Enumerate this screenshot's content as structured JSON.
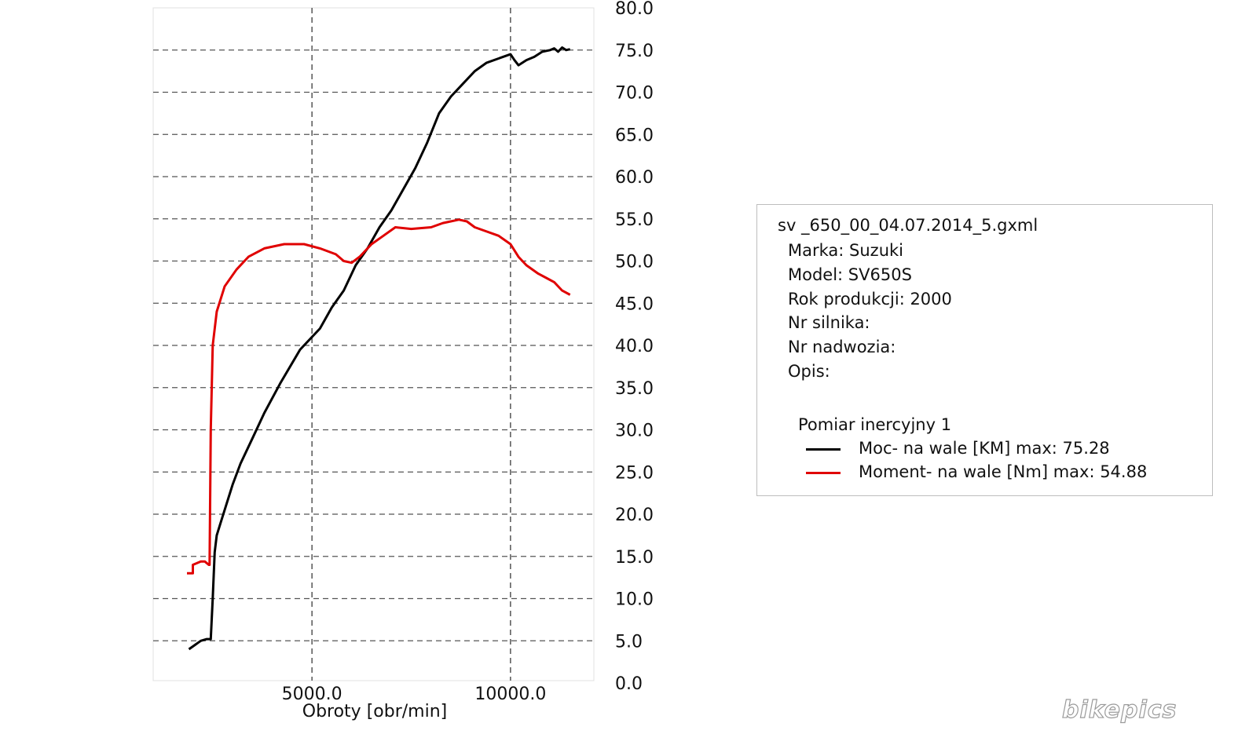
{
  "chart_data": {
    "type": "line",
    "xlabel": "Obroty [obr/min]",
    "ylabel": "",
    "xlim": [
      1000,
      12100
    ],
    "ylim": [
      0,
      80
    ],
    "x_ticks": [
      "5000.0",
      "10000.0"
    ],
    "x_tick_values": [
      5000,
      10000
    ],
    "y_ticks": [
      "0.0",
      "5.0",
      "10.0",
      "15.0",
      "20.0",
      "25.0",
      "30.0",
      "35.0",
      "40.0",
      "45.0",
      "50.0",
      "55.0",
      "60.0",
      "65.0",
      "70.0",
      "75.0",
      "80.0"
    ],
    "y_tick_values": [
      0,
      5,
      10,
      15,
      20,
      25,
      30,
      35,
      40,
      45,
      50,
      55,
      60,
      65,
      70,
      75,
      80
    ],
    "grid": true,
    "series": [
      {
        "name": "Moc- na wale [KM] max: 75.28",
        "color": "#000000",
        "x": [
          1900,
          2050,
          2200,
          2350,
          2450,
          2500,
          2550,
          2600,
          2700,
          2800,
          3000,
          3200,
          3500,
          3800,
          4200,
          4700,
          5200,
          5500,
          5800,
          6100,
          6400,
          6700,
          7000,
          7300,
          7600,
          7900,
          8200,
          8500,
          8800,
          9100,
          9400,
          9700,
          10000,
          10100,
          10200,
          10400,
          10600,
          10800,
          11000,
          11100,
          11200,
          11300,
          11400,
          11500
        ],
        "y": [
          4.0,
          4.5,
          5.0,
          5.2,
          5.2,
          10.0,
          15.5,
          17.5,
          19.0,
          20.5,
          23.5,
          26.0,
          29.0,
          32.0,
          35.5,
          39.5,
          42.0,
          44.5,
          46.5,
          49.5,
          51.5,
          54.0,
          56.0,
          58.5,
          61.0,
          64.0,
          67.5,
          69.5,
          71.0,
          72.5,
          73.5,
          74.0,
          74.5,
          73.8,
          73.2,
          73.8,
          74.2,
          74.8,
          75.0,
          75.2,
          74.8,
          75.3,
          75.0,
          75.1
        ]
      },
      {
        "name": "Moment- na wale [Nm] max: 54.88",
        "color": "#e00000",
        "x": [
          1850,
          2000,
          2000,
          2100,
          2200,
          2300,
          2400,
          2420,
          2450,
          2500,
          2600,
          2800,
          3100,
          3400,
          3800,
          4300,
          4800,
          5200,
          5600,
          5800,
          6000,
          6200,
          6500,
          6800,
          7100,
          7500,
          8000,
          8300,
          8700,
          8900,
          9100,
          9400,
          9700,
          10000,
          10200,
          10400,
          10700,
          10900,
          11100,
          11300,
          11500
        ],
        "y": [
          13.0,
          13.0,
          14.0,
          14.2,
          14.4,
          14.4,
          14.0,
          14.0,
          30.0,
          40.0,
          44.0,
          47.0,
          49.0,
          50.5,
          51.5,
          52.0,
          52.0,
          51.5,
          50.8,
          50.0,
          49.8,
          50.5,
          52.0,
          53.0,
          54.0,
          53.8,
          54.0,
          54.5,
          54.9,
          54.7,
          54.0,
          53.5,
          53.0,
          52.0,
          50.5,
          49.5,
          48.5,
          48.0,
          47.5,
          46.5,
          46.0
        ]
      }
    ]
  },
  "info": {
    "title": "sv _650_00_04.07.2014_5.gxml",
    "rows": [
      "Marka: Suzuki",
      "Model: SV650S",
      "Rok produkcji: 2000",
      "Nr silnika:",
      "Nr nadwozia:",
      "Opis:"
    ]
  },
  "legend": {
    "title": "Pomiar inercyjny 1",
    "items": [
      {
        "label": "Moc- na wale [KM] max: 75.28",
        "color": "#000000"
      },
      {
        "label": "Moment- na wale [Nm] max: 54.88",
        "color": "#e00000"
      }
    ]
  },
  "watermark": "bikepics"
}
